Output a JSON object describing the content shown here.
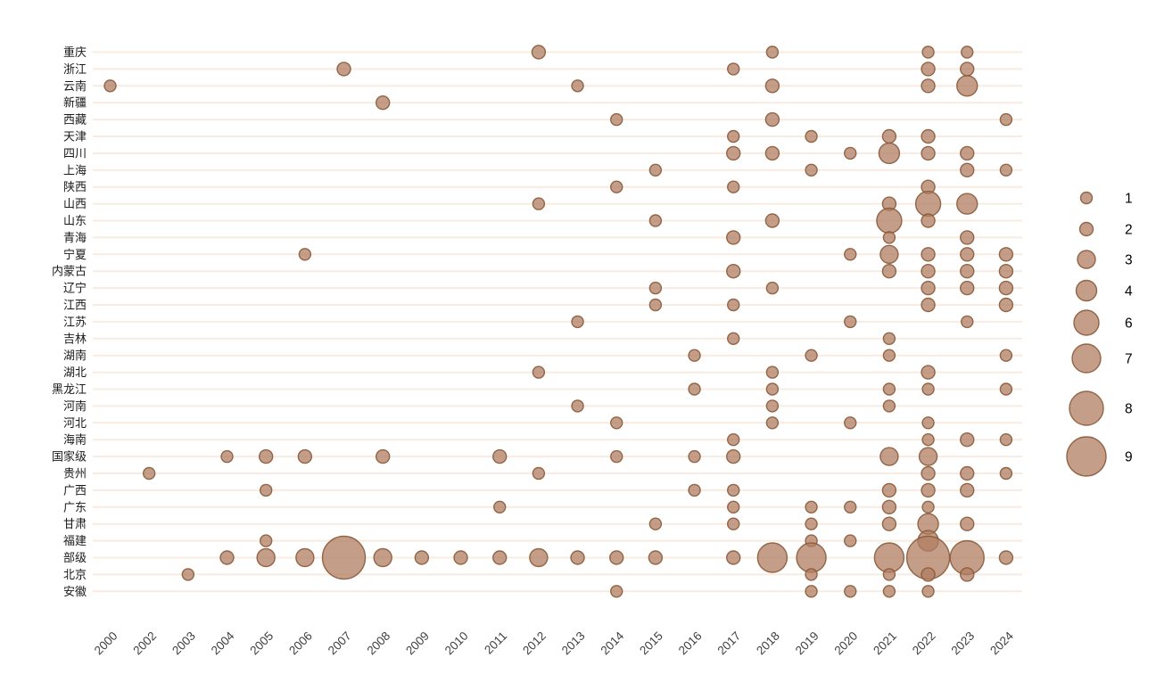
{
  "chart_data": {
    "type": "scatter",
    "subtype": "bubble-matrix",
    "title": "",
    "xlabel": "",
    "ylabel": "",
    "grid": "horizontal-only",
    "legend_position": "right",
    "x_categories": [
      "2000",
      "2002",
      "2003",
      "2004",
      "2005",
      "2006",
      "2007",
      "2008",
      "2009",
      "2010",
      "2011",
      "2012",
      "2013",
      "2014",
      "2015",
      "2016",
      "2017",
      "2018",
      "2019",
      "2020",
      "2021",
      "2022",
      "2023",
      "2024"
    ],
    "y_categories": [
      "重庆",
      "浙江",
      "云南",
      "新疆",
      "西藏",
      "天津",
      "四川",
      "上海",
      "陕西",
      "山西",
      "山东",
      "青海",
      "宁夏",
      "内蒙古",
      "辽宁",
      "江西",
      "江苏",
      "吉林",
      "湖南",
      "湖北",
      "黑龙江",
      "河南",
      "河北",
      "海南",
      "国家级",
      "贵州",
      "广西",
      "广东",
      "甘肃",
      "福建",
      "部级",
      "北京",
      "安徽"
    ],
    "size_legend_values": [
      1,
      2,
      3,
      4,
      6,
      7,
      8,
      9
    ],
    "colors": {
      "bubble_fill": "#b07e62",
      "bubble_fill_alpha": 0.75,
      "bubble_stroke": "#8a5a3a",
      "gridline": "#f8ece2",
      "axis_text": "#3f3f3f",
      "legend_text": "#000000",
      "background": "#ffffff"
    },
    "points": [
      {
        "x": "2000",
        "y": "云南",
        "size": 1
      },
      {
        "x": "2002",
        "y": "贵州",
        "size": 1
      },
      {
        "x": "2003",
        "y": "北京",
        "size": 1
      },
      {
        "x": "2004",
        "y": "国家级",
        "size": 1
      },
      {
        "x": "2004",
        "y": "部级",
        "size": 2
      },
      {
        "x": "2005",
        "y": "国家级",
        "size": 2
      },
      {
        "x": "2005",
        "y": "广西",
        "size": 1
      },
      {
        "x": "2005",
        "y": "福建",
        "size": 1
      },
      {
        "x": "2005",
        "y": "部级",
        "size": 3
      },
      {
        "x": "2006",
        "y": "宁夏",
        "size": 1
      },
      {
        "x": "2006",
        "y": "国家级",
        "size": 2
      },
      {
        "x": "2006",
        "y": "部级",
        "size": 3
      },
      {
        "x": "2007",
        "y": "浙江",
        "size": 2
      },
      {
        "x": "2007",
        "y": "部级",
        "size": 9
      },
      {
        "x": "2008",
        "y": "新疆",
        "size": 2
      },
      {
        "x": "2008",
        "y": "国家级",
        "size": 2
      },
      {
        "x": "2008",
        "y": "部级",
        "size": 3
      },
      {
        "x": "2009",
        "y": "部级",
        "size": 2
      },
      {
        "x": "2010",
        "y": "部级",
        "size": 2
      },
      {
        "x": "2011",
        "y": "国家级",
        "size": 2
      },
      {
        "x": "2011",
        "y": "广东",
        "size": 1
      },
      {
        "x": "2011",
        "y": "部级",
        "size": 2
      },
      {
        "x": "2012",
        "y": "重庆",
        "size": 2
      },
      {
        "x": "2012",
        "y": "山西",
        "size": 1
      },
      {
        "x": "2012",
        "y": "湖北",
        "size": 1
      },
      {
        "x": "2012",
        "y": "贵州",
        "size": 1
      },
      {
        "x": "2012",
        "y": "部级",
        "size": 3
      },
      {
        "x": "2013",
        "y": "云南",
        "size": 1
      },
      {
        "x": "2013",
        "y": "江苏",
        "size": 1
      },
      {
        "x": "2013",
        "y": "河南",
        "size": 1
      },
      {
        "x": "2013",
        "y": "部级",
        "size": 2
      },
      {
        "x": "2014",
        "y": "西藏",
        "size": 1
      },
      {
        "x": "2014",
        "y": "陕西",
        "size": 1
      },
      {
        "x": "2014",
        "y": "河北",
        "size": 1
      },
      {
        "x": "2014",
        "y": "国家级",
        "size": 1
      },
      {
        "x": "2014",
        "y": "部级",
        "size": 2
      },
      {
        "x": "2014",
        "y": "安徽",
        "size": 1
      },
      {
        "x": "2015",
        "y": "上海",
        "size": 1
      },
      {
        "x": "2015",
        "y": "山东",
        "size": 1
      },
      {
        "x": "2015",
        "y": "辽宁",
        "size": 1
      },
      {
        "x": "2015",
        "y": "江西",
        "size": 1
      },
      {
        "x": "2015",
        "y": "甘肃",
        "size": 1
      },
      {
        "x": "2015",
        "y": "部级",
        "size": 2
      },
      {
        "x": "2016",
        "y": "湖南",
        "size": 1
      },
      {
        "x": "2016",
        "y": "黑龙江",
        "size": 1
      },
      {
        "x": "2016",
        "y": "国家级",
        "size": 1
      },
      {
        "x": "2016",
        "y": "广西",
        "size": 1
      },
      {
        "x": "2017",
        "y": "浙江",
        "size": 1
      },
      {
        "x": "2017",
        "y": "天津",
        "size": 1
      },
      {
        "x": "2017",
        "y": "四川",
        "size": 2
      },
      {
        "x": "2017",
        "y": "陕西",
        "size": 1
      },
      {
        "x": "2017",
        "y": "青海",
        "size": 2
      },
      {
        "x": "2017",
        "y": "内蒙古",
        "size": 2
      },
      {
        "x": "2017",
        "y": "江西",
        "size": 1
      },
      {
        "x": "2017",
        "y": "吉林",
        "size": 1
      },
      {
        "x": "2017",
        "y": "海南",
        "size": 1
      },
      {
        "x": "2017",
        "y": "国家级",
        "size": 2
      },
      {
        "x": "2017",
        "y": "广西",
        "size": 1
      },
      {
        "x": "2017",
        "y": "广东",
        "size": 1
      },
      {
        "x": "2017",
        "y": "甘肃",
        "size": 1
      },
      {
        "x": "2017",
        "y": "部级",
        "size": 2
      },
      {
        "x": "2018",
        "y": "重庆",
        "size": 1
      },
      {
        "x": "2018",
        "y": "云南",
        "size": 2
      },
      {
        "x": "2018",
        "y": "西藏",
        "size": 2
      },
      {
        "x": "2018",
        "y": "四川",
        "size": 2
      },
      {
        "x": "2018",
        "y": "山东",
        "size": 2
      },
      {
        "x": "2018",
        "y": "辽宁",
        "size": 1
      },
      {
        "x": "2018",
        "y": "湖北",
        "size": 1
      },
      {
        "x": "2018",
        "y": "黑龙江",
        "size": 1
      },
      {
        "x": "2018",
        "y": "河南",
        "size": 1
      },
      {
        "x": "2018",
        "y": "河北",
        "size": 1
      },
      {
        "x": "2018",
        "y": "部级",
        "size": 7
      },
      {
        "x": "2019",
        "y": "天津",
        "size": 1
      },
      {
        "x": "2019",
        "y": "上海",
        "size": 1
      },
      {
        "x": "2019",
        "y": "湖南",
        "size": 1
      },
      {
        "x": "2019",
        "y": "广东",
        "size": 1
      },
      {
        "x": "2019",
        "y": "甘肃",
        "size": 1
      },
      {
        "x": "2019",
        "y": "福建",
        "size": 1
      },
      {
        "x": "2019",
        "y": "部级",
        "size": 7
      },
      {
        "x": "2019",
        "y": "北京",
        "size": 1
      },
      {
        "x": "2019",
        "y": "安徽",
        "size": 1
      },
      {
        "x": "2020",
        "y": "四川",
        "size": 1
      },
      {
        "x": "2020",
        "y": "宁夏",
        "size": 1
      },
      {
        "x": "2020",
        "y": "江苏",
        "size": 1
      },
      {
        "x": "2020",
        "y": "河北",
        "size": 1
      },
      {
        "x": "2020",
        "y": "广东",
        "size": 1
      },
      {
        "x": "2020",
        "y": "福建",
        "size": 1
      },
      {
        "x": "2020",
        "y": "安徽",
        "size": 1
      },
      {
        "x": "2021",
        "y": "天津",
        "size": 2
      },
      {
        "x": "2021",
        "y": "四川",
        "size": 4
      },
      {
        "x": "2021",
        "y": "山西",
        "size": 2
      },
      {
        "x": "2021",
        "y": "山东",
        "size": 6
      },
      {
        "x": "2021",
        "y": "青海",
        "size": 1
      },
      {
        "x": "2021",
        "y": "宁夏",
        "size": 3
      },
      {
        "x": "2021",
        "y": "内蒙古",
        "size": 2
      },
      {
        "x": "2021",
        "y": "吉林",
        "size": 1
      },
      {
        "x": "2021",
        "y": "湖南",
        "size": 1
      },
      {
        "x": "2021",
        "y": "黑龙江",
        "size": 1
      },
      {
        "x": "2021",
        "y": "河南",
        "size": 1
      },
      {
        "x": "2021",
        "y": "国家级",
        "size": 3
      },
      {
        "x": "2021",
        "y": "广西",
        "size": 2
      },
      {
        "x": "2021",
        "y": "广东",
        "size": 2
      },
      {
        "x": "2021",
        "y": "甘肃",
        "size": 2
      },
      {
        "x": "2021",
        "y": "部级",
        "size": 7
      },
      {
        "x": "2021",
        "y": "北京",
        "size": 1
      },
      {
        "x": "2021",
        "y": "安徽",
        "size": 1
      },
      {
        "x": "2022",
        "y": "重庆",
        "size": 1
      },
      {
        "x": "2022",
        "y": "浙江",
        "size": 2
      },
      {
        "x": "2022",
        "y": "云南",
        "size": 2
      },
      {
        "x": "2022",
        "y": "天津",
        "size": 2
      },
      {
        "x": "2022",
        "y": "四川",
        "size": 2
      },
      {
        "x": "2022",
        "y": "陕西",
        "size": 2
      },
      {
        "x": "2022",
        "y": "山西",
        "size": 6
      },
      {
        "x": "2022",
        "y": "山东",
        "size": 2
      },
      {
        "x": "2022",
        "y": "宁夏",
        "size": 2
      },
      {
        "x": "2022",
        "y": "内蒙古",
        "size": 2
      },
      {
        "x": "2022",
        "y": "辽宁",
        "size": 2
      },
      {
        "x": "2022",
        "y": "江西",
        "size": 2
      },
      {
        "x": "2022",
        "y": "湖北",
        "size": 2
      },
      {
        "x": "2022",
        "y": "黑龙江",
        "size": 1
      },
      {
        "x": "2022",
        "y": "河北",
        "size": 1
      },
      {
        "x": "2022",
        "y": "海南",
        "size": 1
      },
      {
        "x": "2022",
        "y": "国家级",
        "size": 3
      },
      {
        "x": "2022",
        "y": "贵州",
        "size": 2
      },
      {
        "x": "2022",
        "y": "广西",
        "size": 2
      },
      {
        "x": "2022",
        "y": "广东",
        "size": 1
      },
      {
        "x": "2022",
        "y": "甘肃",
        "size": 4
      },
      {
        "x": "2022",
        "y": "福建",
        "size": 4
      },
      {
        "x": "2022",
        "y": "部级",
        "size": 9
      },
      {
        "x": "2022",
        "y": "北京",
        "size": 2
      },
      {
        "x": "2022",
        "y": "安徽",
        "size": 1
      },
      {
        "x": "2023",
        "y": "重庆",
        "size": 1
      },
      {
        "x": "2023",
        "y": "浙江",
        "size": 2
      },
      {
        "x": "2023",
        "y": "云南",
        "size": 4
      },
      {
        "x": "2023",
        "y": "四川",
        "size": 2
      },
      {
        "x": "2023",
        "y": "上海",
        "size": 2
      },
      {
        "x": "2023",
        "y": "山西",
        "size": 4
      },
      {
        "x": "2023",
        "y": "青海",
        "size": 2
      },
      {
        "x": "2023",
        "y": "宁夏",
        "size": 2
      },
      {
        "x": "2023",
        "y": "内蒙古",
        "size": 2
      },
      {
        "x": "2023",
        "y": "辽宁",
        "size": 2
      },
      {
        "x": "2023",
        "y": "江苏",
        "size": 1
      },
      {
        "x": "2023",
        "y": "海南",
        "size": 2
      },
      {
        "x": "2023",
        "y": "贵州",
        "size": 2
      },
      {
        "x": "2023",
        "y": "广西",
        "size": 2
      },
      {
        "x": "2023",
        "y": "甘肃",
        "size": 2
      },
      {
        "x": "2023",
        "y": "部级",
        "size": 8
      },
      {
        "x": "2023",
        "y": "北京",
        "size": 2
      },
      {
        "x": "2024",
        "y": "西藏",
        "size": 1
      },
      {
        "x": "2024",
        "y": "上海",
        "size": 1
      },
      {
        "x": "2024",
        "y": "宁夏",
        "size": 2
      },
      {
        "x": "2024",
        "y": "内蒙古",
        "size": 2
      },
      {
        "x": "2024",
        "y": "辽宁",
        "size": 2
      },
      {
        "x": "2024",
        "y": "江西",
        "size": 2
      },
      {
        "x": "2024",
        "y": "湖南",
        "size": 1
      },
      {
        "x": "2024",
        "y": "黑龙江",
        "size": 1
      },
      {
        "x": "2024",
        "y": "海南",
        "size": 1
      },
      {
        "x": "2024",
        "y": "贵州",
        "size": 1
      },
      {
        "x": "2024",
        "y": "部级",
        "size": 2
      }
    ]
  }
}
